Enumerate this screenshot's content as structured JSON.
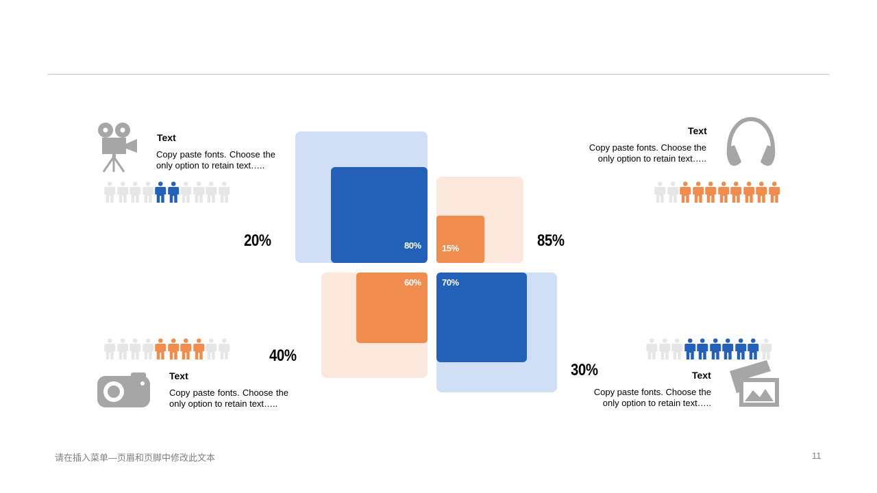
{
  "colors": {
    "blue": "#2360b8",
    "blue_light": "#d0dff5",
    "orange": "#ef8c4e",
    "orange_light": "#fbe7dc",
    "person_gray": "#e6e6e6",
    "icon_gray": "#a6a6a6"
  },
  "center_boxes": {
    "top_left": {
      "label": "80%",
      "value": 80
    },
    "top_right": {
      "label": "15%",
      "value": 15
    },
    "bottom_left": {
      "label": "60%",
      "value": 60
    },
    "bottom_right": {
      "label": "70%",
      "value": 70
    }
  },
  "percents": {
    "top_left": "20%",
    "top_right": "85%",
    "bottom_left": "40%",
    "bottom_right": "30%"
  },
  "blocks": {
    "top_left": {
      "icon": "video-camera-icon",
      "title": "Text",
      "body": "Copy paste fonts. Choose the only option to retain text….."
    },
    "top_right": {
      "icon": "headphones-icon",
      "title": "Text",
      "body": "Copy paste fonts. Choose the only option to retain text….."
    },
    "bottom_left": {
      "icon": "camera-icon",
      "title": "Text",
      "body": "Copy paste fonts. Choose the only option to retain text….."
    },
    "bottom_right": {
      "icon": "picture-icon",
      "title": "Text",
      "body": "Copy paste fonts. Choose the only option to retain text….."
    }
  },
  "people_rows": {
    "top_left": {
      "total": 10,
      "highlight": [
        4,
        5
      ],
      "color": "blue"
    },
    "top_right": {
      "total": 10,
      "highlight": [
        2,
        3,
        4,
        5,
        6,
        7,
        8,
        9
      ],
      "color": "orange"
    },
    "bottom_left": {
      "total": 10,
      "highlight": [
        4,
        5,
        6,
        7
      ],
      "color": "orange"
    },
    "bottom_right": {
      "total": 10,
      "highlight": [
        3,
        4,
        5,
        6,
        7,
        8
      ],
      "color": "blue"
    }
  },
  "footer": {
    "text": "请在插入菜单—页眉和页脚中修改此文本",
    "page": "11"
  }
}
